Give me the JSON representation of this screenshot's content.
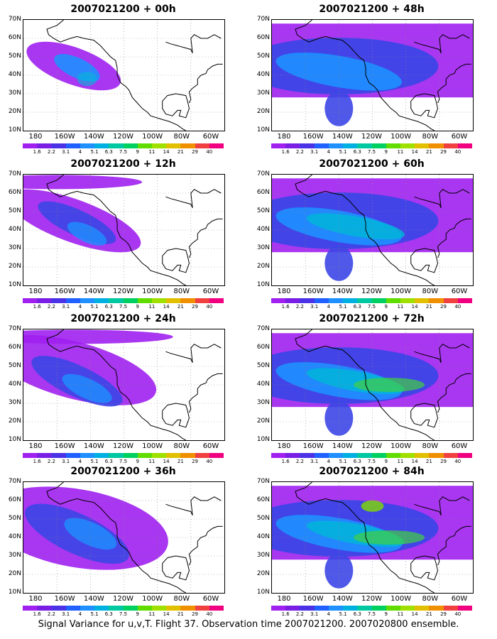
{
  "panels": [
    {
      "title": "2007021200 + 00h",
      "lead": 0
    },
    {
      "title": "2007021200 + 48h",
      "lead": 48
    },
    {
      "title": "2007021200 + 12h",
      "lead": 12
    },
    {
      "title": "2007021200 + 60h",
      "lead": 60
    },
    {
      "title": "2007021200 + 24h",
      "lead": 24
    },
    {
      "title": "2007021200 + 72h",
      "lead": 72
    },
    {
      "title": "2007021200 + 36h",
      "lead": 36
    },
    {
      "title": "2007021200 + 84h",
      "lead": 84
    }
  ],
  "axes": {
    "lat_labels": [
      "70N",
      "60N",
      "50N",
      "40N",
      "30N",
      "20N",
      "10N"
    ],
    "lon_labels": [
      "180",
      "160W",
      "140W",
      "120W",
      "100W",
      "80W",
      "60W"
    ]
  },
  "colorbar": {
    "labels": [
      "1.6",
      "2.2",
      "3.1",
      "4",
      "5.1",
      "6.3",
      "7.5",
      "9",
      "11",
      "14",
      "21",
      "29",
      "40"
    ],
    "colors": [
      "#a020f0",
      "#7a1ee6",
      "#4b32e6",
      "#2060ff",
      "#1e90ff",
      "#00b0e0",
      "#00c8a0",
      "#00d060",
      "#60dc00",
      "#a0e000",
      "#e0c000",
      "#f09000",
      "#f04040",
      "#f00080"
    ]
  },
  "caption": "Signal Variance for u,v,T. Flight 37. Observation time 2007021200. 2007020800 ensemble."
}
